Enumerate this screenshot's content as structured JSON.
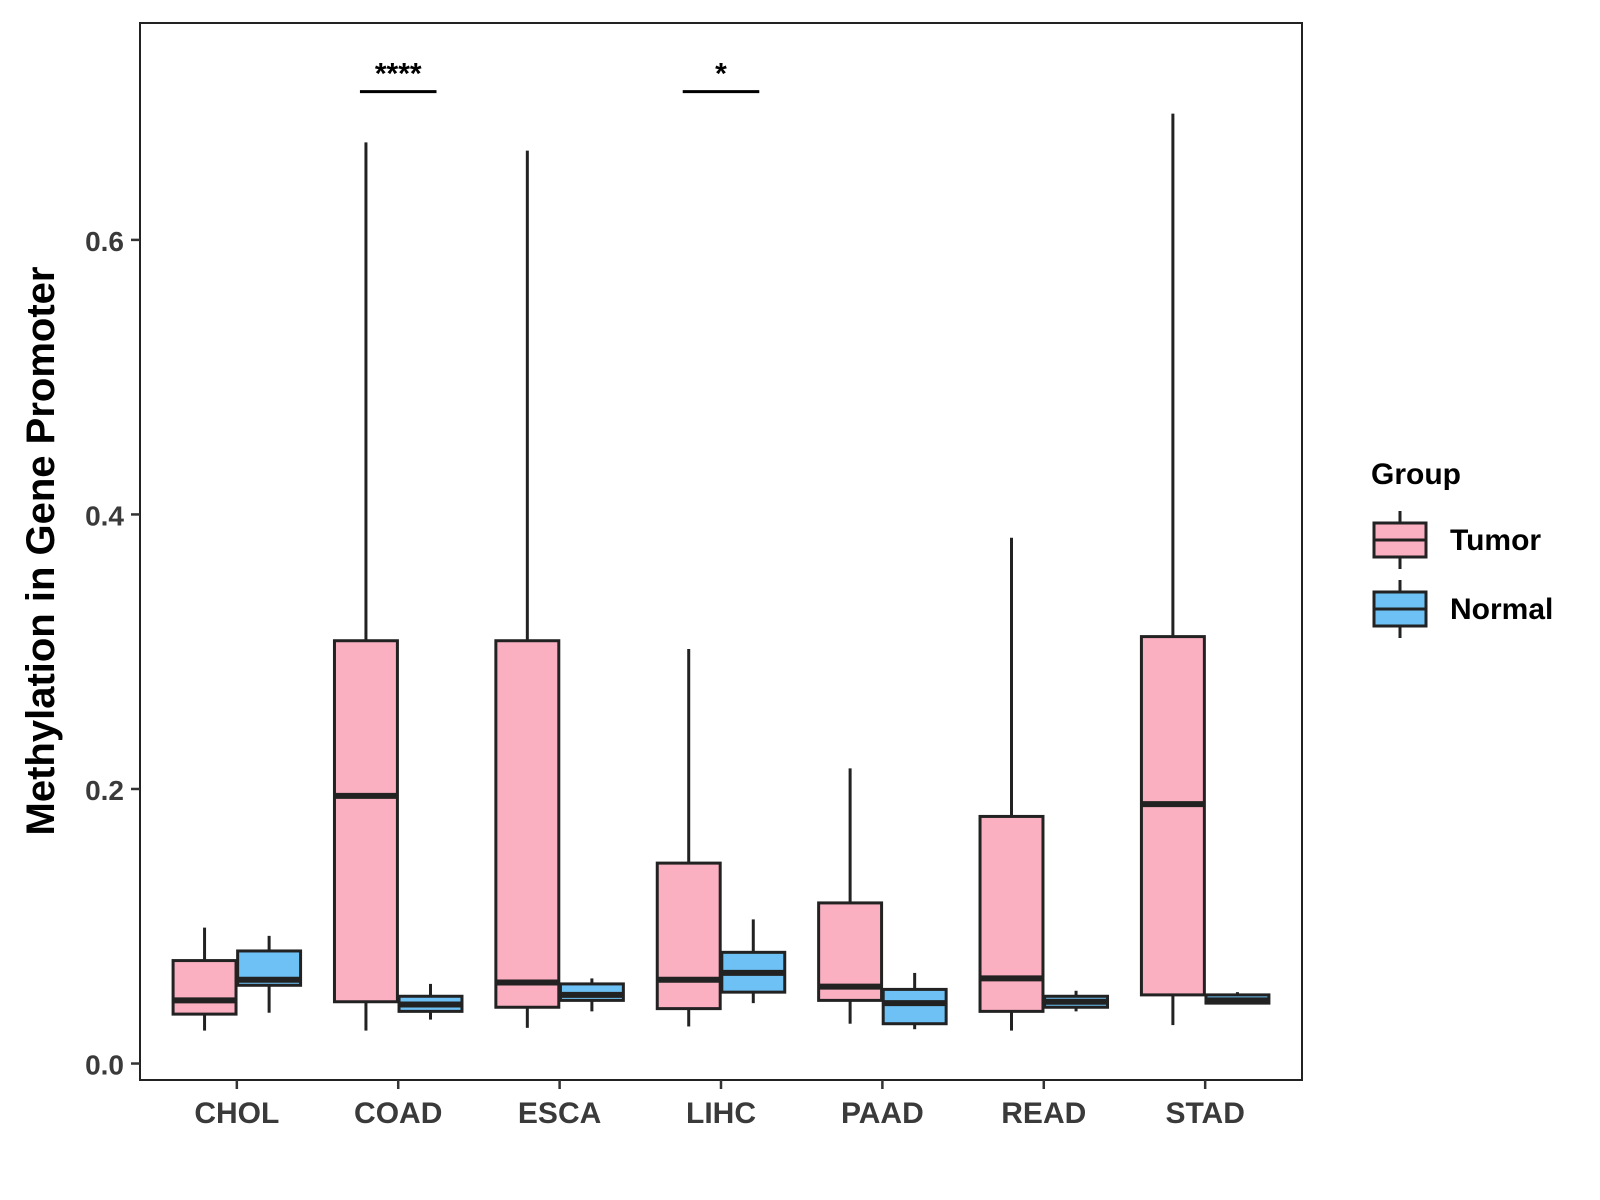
{
  "chart_data": {
    "type": "boxplot",
    "title": "",
    "xlabel": "",
    "ylabel": "Methylation in Gene Promoter",
    "ylim": [
      -0.012,
      0.758
    ],
    "yticks": [
      0.0,
      0.2,
      0.4,
      0.6
    ],
    "ytick_labels": [
      "0.0",
      "0.2",
      "0.4",
      "0.6"
    ],
    "categories": [
      "CHOL",
      "COAD",
      "ESCA",
      "LIHC",
      "PAAD",
      "READ",
      "STAD"
    ],
    "legend": {
      "title": "Group",
      "position": "right",
      "entries": [
        {
          "label": "Tumor",
          "color": "#FBB0C2"
        },
        {
          "label": "Normal",
          "color": "#6EC1F5"
        }
      ]
    },
    "series": [
      {
        "name": "Tumor",
        "color": "#FBB0C2",
        "boxes": [
          {
            "min": 0.024,
            "q1": 0.036,
            "median": 0.046,
            "q3": 0.075,
            "max": 0.099
          },
          {
            "min": 0.024,
            "q1": 0.045,
            "median": 0.195,
            "q3": 0.308,
            "max": 0.671
          },
          {
            "min": 0.026,
            "q1": 0.041,
            "median": 0.059,
            "q3": 0.308,
            "max": 0.665
          },
          {
            "min": 0.027,
            "q1": 0.04,
            "median": 0.061,
            "q3": 0.146,
            "max": 0.302
          },
          {
            "min": 0.029,
            "q1": 0.046,
            "median": 0.056,
            "q3": 0.117,
            "max": 0.215
          },
          {
            "min": 0.024,
            "q1": 0.038,
            "median": 0.062,
            "q3": 0.18,
            "max": 0.383
          },
          {
            "min": 0.028,
            "q1": 0.05,
            "median": 0.189,
            "q3": 0.311,
            "max": 0.692
          }
        ]
      },
      {
        "name": "Normal",
        "color": "#6EC1F5",
        "boxes": [
          {
            "min": 0.037,
            "q1": 0.057,
            "median": 0.061,
            "q3": 0.082,
            "max": 0.093
          },
          {
            "min": 0.032,
            "q1": 0.038,
            "median": 0.043,
            "q3": 0.049,
            "max": 0.058
          },
          {
            "min": 0.038,
            "q1": 0.046,
            "median": 0.05,
            "q3": 0.058,
            "max": 0.062
          },
          {
            "min": 0.044,
            "q1": 0.052,
            "median": 0.066,
            "q3": 0.081,
            "max": 0.105
          },
          {
            "min": 0.025,
            "q1": 0.029,
            "median": 0.044,
            "q3": 0.054,
            "max": 0.066
          },
          {
            "min": 0.038,
            "q1": 0.041,
            "median": 0.045,
            "q3": 0.049,
            "max": 0.053
          },
          {
            "min": 0.043,
            "q1": 0.044,
            "median": 0.046,
            "q3": 0.05,
            "max": 0.052
          }
        ]
      }
    ],
    "significance": [
      {
        "category": "COAD",
        "label": "****",
        "y": 0.708
      },
      {
        "category": "LIHC",
        "label": "*",
        "y": 0.708
      }
    ]
  }
}
